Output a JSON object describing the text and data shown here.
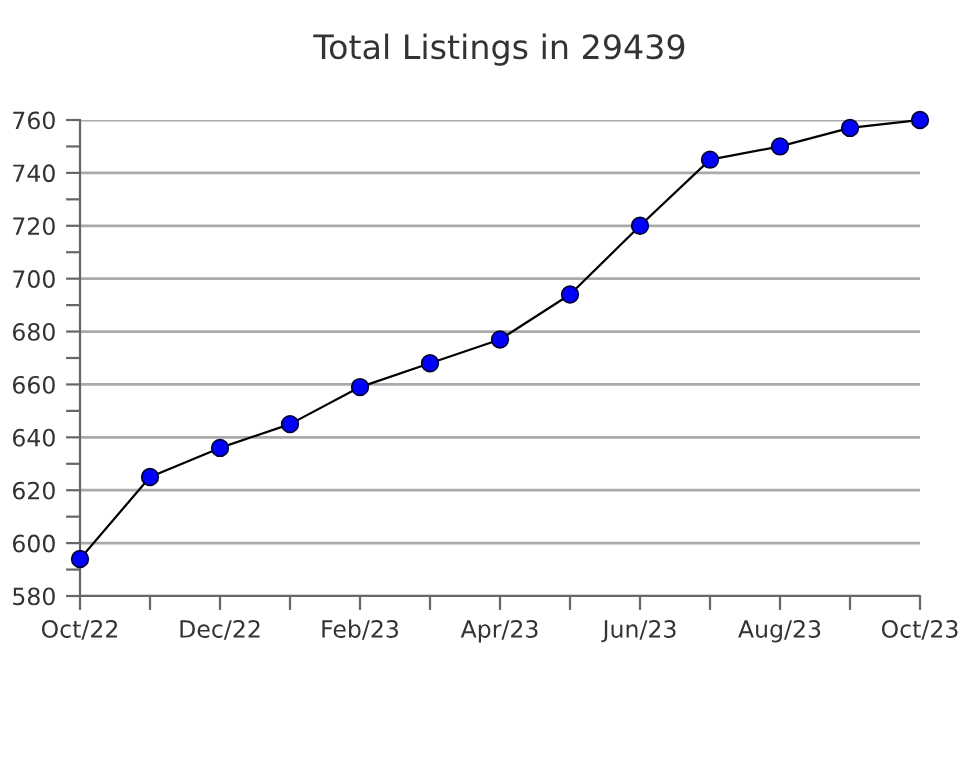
{
  "chart_data": {
    "type": "line",
    "title": "Total Listings in 29439",
    "categories": [
      "Oct/22",
      null,
      "Dec/22",
      null,
      "Feb/23",
      null,
      "Apr/23",
      null,
      "Jun/23",
      null,
      "Aug/23",
      null,
      "Oct/23"
    ],
    "series": [
      {
        "color": "#0000ff",
        "values": [
          594,
          625,
          636,
          645,
          659,
          668,
          677,
          694,
          720,
          745,
          750,
          757,
          760
        ]
      }
    ],
    "ylim": [
      580,
      760
    ],
    "yticks": [
      580,
      {
        "value": 590,
        "label": null
      },
      600,
      {
        "value": 610,
        "label": null
      },
      620,
      {
        "value": 630,
        "label": null
      },
      640,
      {
        "value": 650,
        "label": null
      },
      660,
      {
        "value": 670,
        "label": null
      },
      680,
      {
        "value": 690,
        "label": null
      },
      700,
      {
        "value": 710,
        "label": null
      },
      720,
      {
        "value": 730,
        "label": null
      },
      740,
      {
        "value": 750,
        "label": null
      },
      760
    ],
    "grid": "y",
    "marker": "circle",
    "line_style": "solid"
  }
}
